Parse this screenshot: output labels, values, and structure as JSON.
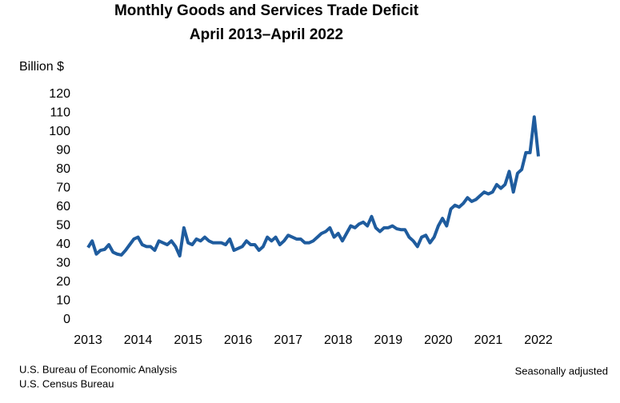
{
  "chart_data": {
    "type": "line",
    "title": "Monthly Goods and Services Trade Deficit",
    "subtitle": "April 2013–April 2022",
    "y_label": "Billion $",
    "source_lines": [
      "U.S. Bureau of Economic Analysis",
      "U.S. Census Bureau"
    ],
    "note": "Seasonally adjusted",
    "color": "#1f5c9e",
    "categories": [
      "2013",
      null,
      null,
      null,
      null,
      null,
      null,
      null,
      null,
      null,
      null,
      null,
      "2014",
      null,
      null,
      null,
      null,
      null,
      null,
      null,
      null,
      null,
      null,
      null,
      "2015",
      null,
      null,
      null,
      null,
      null,
      null,
      null,
      null,
      null,
      null,
      null,
      "2016",
      null,
      null,
      null,
      null,
      null,
      null,
      null,
      null,
      null,
      null,
      null,
      "2017",
      null,
      null,
      null,
      null,
      null,
      null,
      null,
      null,
      null,
      null,
      null,
      "2018",
      null,
      null,
      null,
      null,
      null,
      null,
      null,
      null,
      null,
      null,
      null,
      "2019",
      null,
      null,
      null,
      null,
      null,
      null,
      null,
      null,
      null,
      null,
      null,
      "2020",
      null,
      null,
      null,
      null,
      null,
      null,
      null,
      null,
      null,
      null,
      null,
      "2021",
      null,
      null,
      null,
      null,
      null,
      null,
      null,
      null,
      null,
      null,
      null,
      "2022"
    ],
    "values": [
      38.5,
      42,
      35,
      37,
      37.5,
      40,
      36,
      35,
      34.5,
      37,
      40,
      43,
      44,
      40,
      39,
      39,
      37,
      42,
      41,
      40,
      42,
      39,
      34,
      49,
      41,
      40,
      43,
      42,
      44,
      42,
      41,
      41,
      41,
      40,
      43,
      37,
      38,
      39,
      42,
      40,
      40,
      37,
      39,
      44,
      42,
      44,
      40,
      42,
      45,
      44,
      43,
      43,
      41,
      41,
      42,
      44,
      46,
      47,
      49,
      44,
      46,
      42,
      46,
      50,
      49,
      51,
      52,
      50,
      55,
      49,
      47,
      49,
      49,
      50,
      48.5,
      48,
      48,
      44,
      42,
      39,
      44,
      45,
      41,
      44,
      50,
      54,
      50,
      59,
      61,
      60,
      62,
      65,
      63,
      64,
      66,
      68,
      67,
      68,
      72,
      70,
      72,
      79,
      68,
      78,
      80,
      89,
      89,
      108,
      87
    ],
    "ylim": [
      0,
      120
    ],
    "yticks": [
      0,
      10,
      20,
      30,
      40,
      50,
      60,
      70,
      80,
      90,
      100,
      110,
      120
    ],
    "grid": false
  }
}
